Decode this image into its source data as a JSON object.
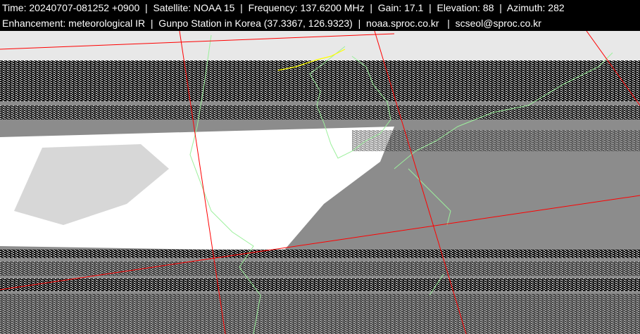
{
  "header": {
    "line1": "Time: 20240707-081252 +0900  |  Satellite: NOAA 15  |  Frequency: 137.6200 MHz  |  Gain: 17.1  |  Elevation: 88  |  Azimuth: 282",
    "line2": "Enhancement: meteorological IR  |  Gunpo Station in Korea (37.3367, 126.9323)  |  noaa.sproc.co.kr   |  scseol@sproc.co.kr"
  },
  "image": {
    "colors": {
      "graticule": "#ff0000",
      "coastline": "#9cf09c",
      "border": "#ffff00",
      "cloud": "#ffffff",
      "ground": "#8c8c8c"
    }
  }
}
